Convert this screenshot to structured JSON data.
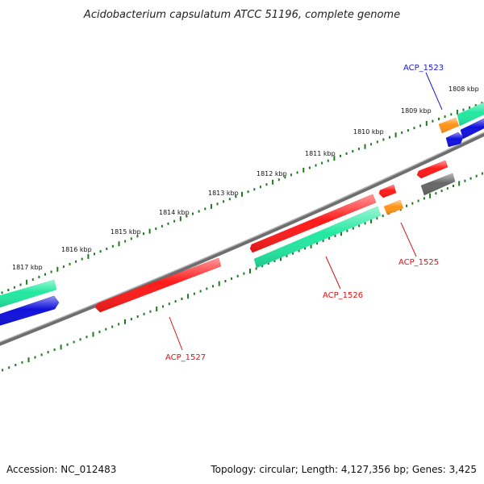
{
  "title": "Acidobacterium capsulatum ATCC 51196, complete genome",
  "footer": {
    "accession": "Accession: NC_012483",
    "summary": "Topology: circular; Length: 4,127,356 bp; Genes: 3,425"
  },
  "colors": {
    "red": "#ff1a1a",
    "green": "#22e8a0",
    "blue": "#1010dd",
    "orange": "#ff9418",
    "gray": "#666666",
    "tick": "#1f7a1f",
    "blue_label": "#1a1ad0",
    "red_label": "#dd1111"
  },
  "scale_labels": [
    "1808 kbp",
    "1809 kbp",
    "1810 kbp",
    "1811 kbp",
    "1812 kbp",
    "1813 kbp",
    "1814 kbp",
    "1815 kbp",
    "1816 kbp",
    "1817 kbp"
  ],
  "gene_labels": [
    {
      "text": "ACP_1523",
      "color": "blue"
    },
    {
      "text": "ACP_1525",
      "color": "red"
    },
    {
      "text": "ACP_1526",
      "color": "red"
    },
    {
      "text": "ACP_1527",
      "color": "red"
    }
  ],
  "features": [
    {
      "name": "gene-red-acp1527",
      "color": "red"
    },
    {
      "name": "gene-red-acp1526",
      "color": "red"
    },
    {
      "name": "gene-red-small-1",
      "color": "red"
    },
    {
      "name": "gene-red-small-2",
      "color": "red"
    },
    {
      "name": "gene-green-left",
      "color": "green"
    },
    {
      "name": "gene-green-acp1526",
      "color": "green"
    },
    {
      "name": "gene-green-right",
      "color": "green"
    },
    {
      "name": "gene-blue-left",
      "color": "blue"
    },
    {
      "name": "gene-blue-right",
      "color": "blue"
    },
    {
      "name": "gene-blue-small",
      "color": "blue"
    },
    {
      "name": "gene-orange-acp1525",
      "color": "orange"
    },
    {
      "name": "gene-orange-acp1523",
      "color": "orange"
    },
    {
      "name": "gene-gray-right",
      "color": "gray"
    }
  ]
}
